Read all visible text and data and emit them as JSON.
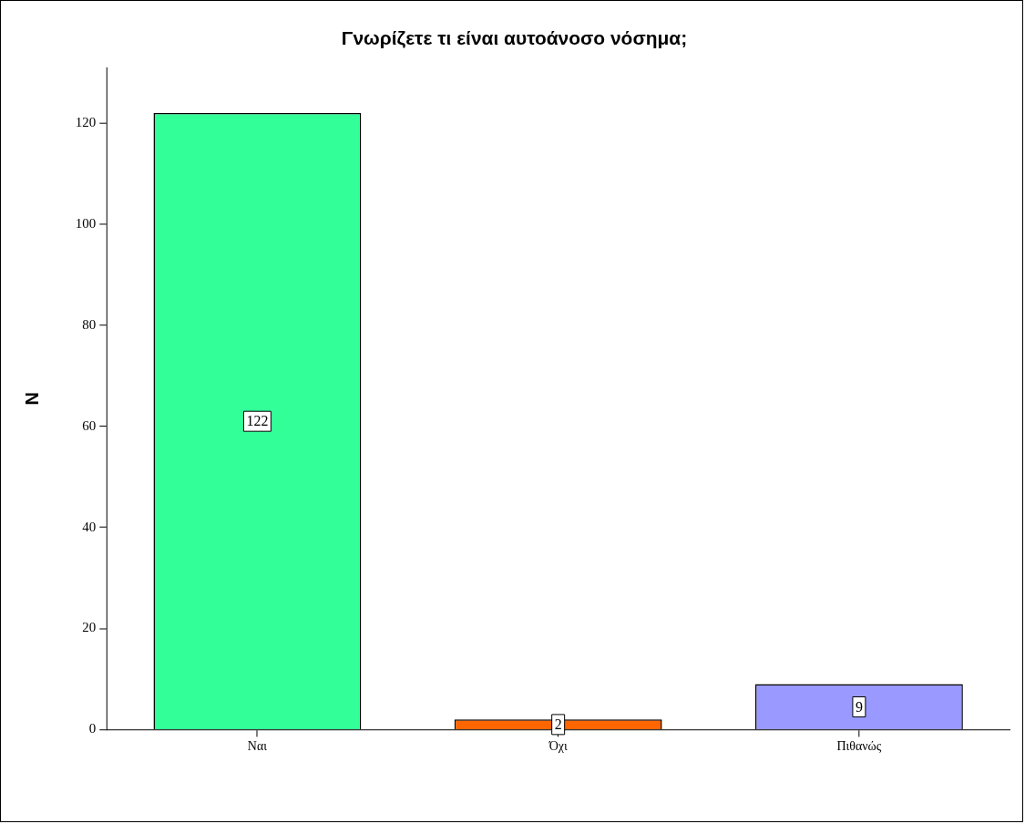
{
  "chart_data": {
    "type": "bar",
    "title": "Γνωρίζετε τι είναι αυτοάνοσο νόσημα;",
    "ylabel": "N",
    "categories": [
      "Ναι",
      "Όχι",
      "Πιθανώς"
    ],
    "values": [
      122,
      2,
      9
    ],
    "colors": [
      "#33ff99",
      "#ff6600",
      "#9999ff"
    ],
    "ylim": [
      0,
      131
    ],
    "yticks": [
      0,
      20,
      40,
      60,
      80,
      100,
      120
    ],
    "grid": false,
    "legend": false,
    "data_labels": true
  }
}
